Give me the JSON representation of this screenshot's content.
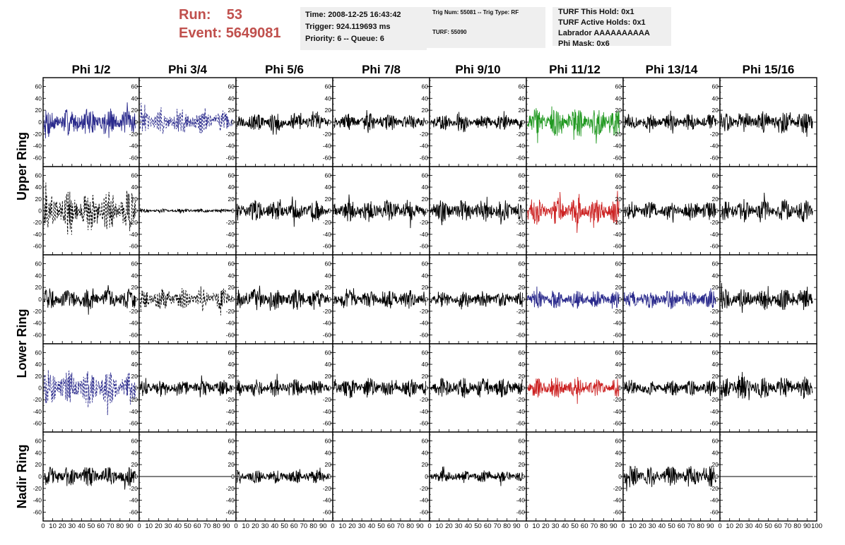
{
  "run_info": {
    "run_label": "Run:",
    "run_value": "53",
    "event_label": "Event:",
    "event_value": "5649081"
  },
  "info_boxes": {
    "time": [
      "Time: 2008-12-25 16:43:42",
      "Trigger: 924.119693 ms",
      "Priority: 6 -- Queue: 6"
    ],
    "trig": [
      "Trig Num: 55081 -- Trig Type: RF",
      "TURF: 55090"
    ],
    "turf": [
      "TURF This Hold: 0x1",
      "TURF Active Holds: 0x1",
      "Labrador AAAAAAAAAA",
      "Phi Mask: 0x6"
    ]
  },
  "colors": {
    "background": "#ffffff",
    "title_red": "#c0504d",
    "info_box": "#efefef",
    "trace_black": "#000000",
    "trace_blue": "#2a2a8c",
    "trace_green": "#229922",
    "trace_red": "#cc2222"
  },
  "chart_data": {
    "type": "line",
    "description_grid": "5 rows x 8 columns of waveform panels",
    "column_titles": [
      "Phi 1/2",
      "Phi 3/4",
      "Phi 5/6",
      "Phi 7/8",
      "Phi 9/10",
      "Phi 11/12",
      "Phi 13/14",
      "Phi 15/16"
    ],
    "row_titles": [
      "Upper Ring",
      "Upper Ring",
      "Lower Ring",
      "Lower Ring",
      "Nadir Ring"
    ],
    "row_title_labels": [
      "Upper Ring",
      "Lower Ring",
      "Nadir Ring"
    ],
    "xlim": [
      0,
      100
    ],
    "ylim": [
      -70,
      70
    ],
    "y_ticks": [
      -60,
      -40,
      -20,
      0,
      20,
      40,
      60
    ],
    "x_ticks": [
      0,
      10,
      20,
      30,
      40,
      50,
      60,
      70,
      80,
      90,
      100
    ],
    "x_tick_labels": [
      "0",
      "10",
      "20",
      "30",
      "40",
      "50",
      "60",
      "70",
      "80",
      "90",
      "100"
    ],
    "grid": false,
    "legend": "none",
    "panels": [
      [
        {
          "color": "blue",
          "style": "solid",
          "amplitude": 22,
          "samples": 260
        },
        {
          "color": "blue",
          "style": "dashed",
          "amplitude": 20,
          "samples": 260
        },
        {
          "color": "black",
          "style": "solid",
          "amplitude": 15,
          "samples": 260
        },
        {
          "color": "black",
          "style": "solid",
          "amplitude": 14,
          "samples": 260
        },
        {
          "color": "black",
          "style": "solid",
          "amplitude": 13,
          "samples": 260
        },
        {
          "color": "green",
          "style": "solid",
          "amplitude": 22,
          "samples": 260
        },
        {
          "color": "black",
          "style": "solid",
          "amplitude": 13,
          "samples": 260
        },
        {
          "color": "black",
          "style": "solid",
          "amplitude": 17,
          "samples": 260
        }
      ],
      [
        {
          "color": "black",
          "style": "dashed",
          "amplitude": 33,
          "samples": 260
        },
        {
          "color": "black",
          "style": "solid",
          "amplitude": 3,
          "samples": 260
        },
        {
          "color": "black",
          "style": "solid",
          "amplitude": 17,
          "samples": 260
        },
        {
          "color": "black",
          "style": "solid",
          "amplitude": 18,
          "samples": 260
        },
        {
          "color": "black",
          "style": "solid",
          "amplitude": 18,
          "samples": 260
        },
        {
          "color": "red",
          "style": "solid",
          "amplitude": 22,
          "samples": 260
        },
        {
          "color": "black",
          "style": "solid",
          "amplitude": 15,
          "samples": 260
        },
        {
          "color": "black",
          "style": "solid",
          "amplitude": 18,
          "samples": 260
        }
      ],
      [
        {
          "color": "black",
          "style": "solid",
          "amplitude": 17,
          "samples": 260
        },
        {
          "color": "black",
          "style": "dashed",
          "amplitude": 17,
          "samples": 260
        },
        {
          "color": "black",
          "style": "solid",
          "amplitude": 17,
          "samples": 260
        },
        {
          "color": "black",
          "style": "solid",
          "amplitude": 15,
          "samples": 260
        },
        {
          "color": "black",
          "style": "solid",
          "amplitude": 13,
          "samples": 260
        },
        {
          "color": "blue",
          "style": "solid",
          "amplitude": 15,
          "samples": 260
        },
        {
          "color": "blue",
          "style": "solid",
          "amplitude": 15,
          "samples": 260
        },
        {
          "color": "black",
          "style": "solid",
          "amplitude": 17,
          "samples": 260
        }
      ],
      [
        {
          "color": "blue",
          "style": "dashed",
          "amplitude": 28,
          "samples": 260
        },
        {
          "color": "black",
          "style": "solid",
          "amplitude": 13,
          "samples": 260
        },
        {
          "color": "black",
          "style": "solid",
          "amplitude": 14,
          "samples": 260
        },
        {
          "color": "black",
          "style": "solid",
          "amplitude": 16,
          "samples": 260
        },
        {
          "color": "black",
          "style": "solid",
          "amplitude": 16,
          "samples": 260
        },
        {
          "color": "red",
          "style": "solid",
          "amplitude": 16,
          "samples": 260
        },
        {
          "color": "black",
          "style": "solid",
          "amplitude": 13,
          "samples": 260
        },
        {
          "color": "black",
          "style": "solid",
          "amplitude": 18,
          "samples": 260
        }
      ],
      [
        {
          "color": "black",
          "style": "solid",
          "amplitude": 16,
          "samples": 260
        },
        {
          "color": "black",
          "style": "flat",
          "amplitude": 0,
          "samples": 2
        },
        {
          "color": "black",
          "style": "solid",
          "amplitude": 11,
          "samples": 260
        },
        {
          "color": "none",
          "style": "empty",
          "amplitude": 0,
          "samples": 0
        },
        {
          "color": "black",
          "style": "solid",
          "amplitude": 10,
          "samples": 260
        },
        {
          "color": "none",
          "style": "empty",
          "amplitude": 0,
          "samples": 0
        },
        {
          "color": "black",
          "style": "solid",
          "amplitude": 17,
          "samples": 260
        },
        {
          "color": "black",
          "style": "flat",
          "amplitude": 0,
          "samples": 2
        }
      ]
    ]
  }
}
